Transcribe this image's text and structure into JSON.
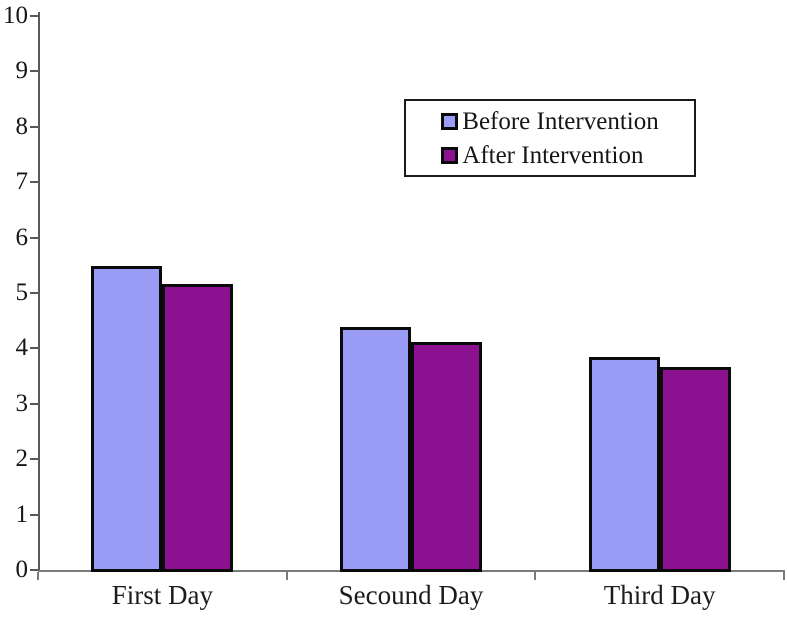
{
  "chart_data": {
    "type": "bar",
    "title": "",
    "xlabel": "",
    "ylabel": "",
    "categories": [
      "First Day",
      "Secound Day",
      "Third Day"
    ],
    "series": [
      {
        "name": "Before Intervention",
        "color": "#9A9CF6",
        "values": [
          5.48,
          4.38,
          3.85
        ]
      },
      {
        "name": "After Intervention",
        "color": "#8C1190",
        "values": [
          5.17,
          4.12,
          3.66
        ]
      }
    ],
    "ylim": [
      0,
      10
    ],
    "ytick_step": 1,
    "ytick_labels": [
      "0",
      "1",
      "2",
      "3",
      "4",
      "5",
      "6",
      "7",
      "8",
      "9",
      "10"
    ],
    "grid": false,
    "legend_position": "upper-right-inside"
  },
  "colors": {
    "background": "#ffffff",
    "axis_line": "#595959",
    "bar_border": "#0a0a0a",
    "text": "#1a1a1a",
    "legend_border": "#1a1a1a",
    "series_before": "#9A9CF6",
    "series_after": "#8C1190"
  }
}
